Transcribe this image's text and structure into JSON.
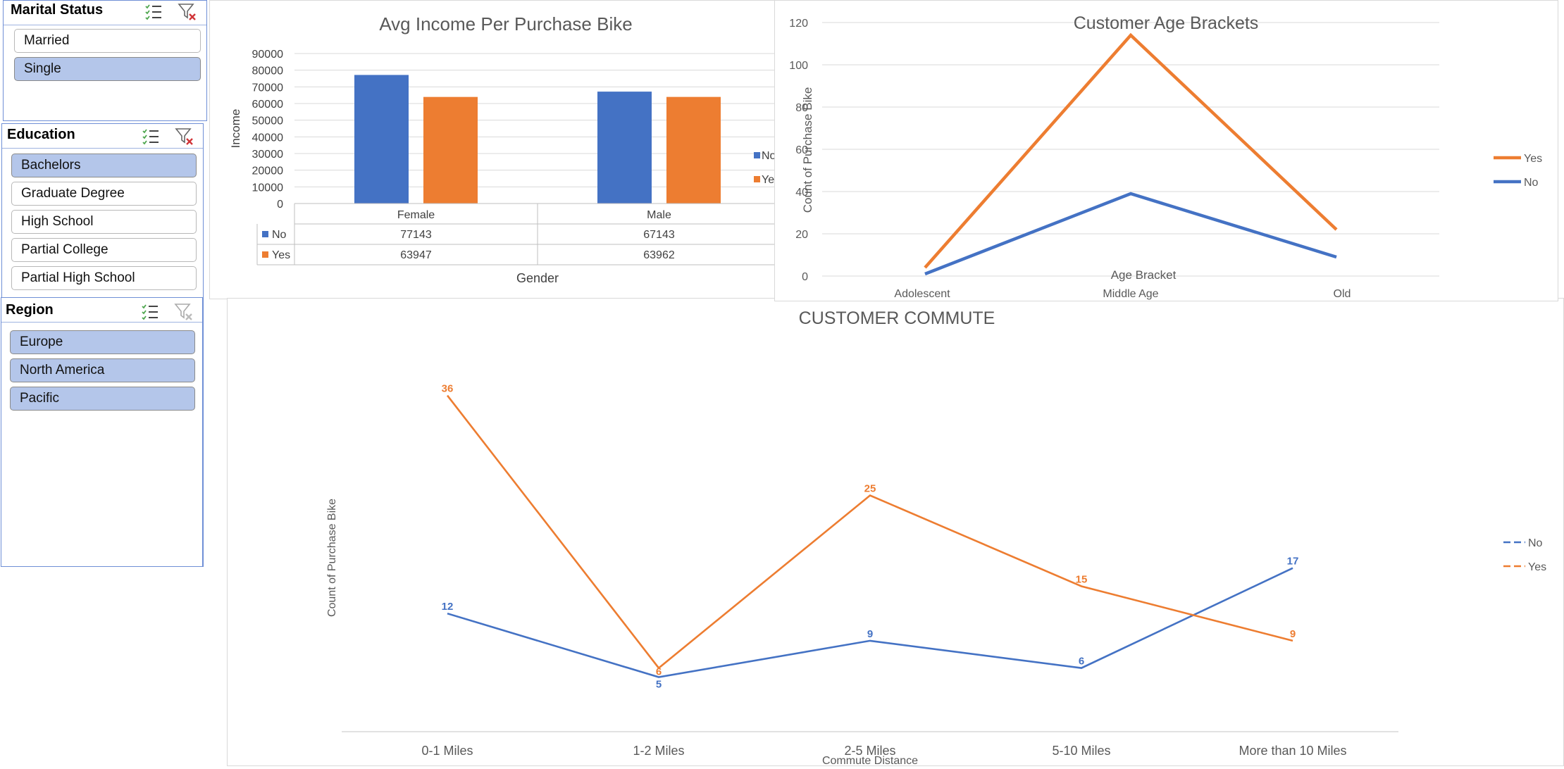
{
  "slicers": {
    "marital": {
      "title": "Marital Status",
      "items": [
        {
          "label": "Married",
          "selected": false
        },
        {
          "label": "Single",
          "selected": true
        }
      ]
    },
    "education": {
      "title": "Education",
      "items": [
        {
          "label": "Bachelors",
          "selected": true
        },
        {
          "label": "Graduate Degree",
          "selected": false
        },
        {
          "label": "High School",
          "selected": false
        },
        {
          "label": "Partial College",
          "selected": false
        },
        {
          "label": "Partial High School",
          "selected": false
        }
      ]
    },
    "region": {
      "title": "Region",
      "items": [
        {
          "label": "Europe",
          "selected": true
        },
        {
          "label": "North America",
          "selected": true
        },
        {
          "label": "Pacific",
          "selected": true
        }
      ]
    }
  },
  "colors": {
    "no": "#4472c4",
    "yes": "#ed7d31",
    "axis": "#595959",
    "grid": "#d9d9d9"
  },
  "chart_data": [
    {
      "type": "bar",
      "title": "Avg Income Per Purchase Bike",
      "xlabel": "Gender",
      "ylabel": "Income",
      "categories": [
        "Female",
        "Male"
      ],
      "yticks": [
        "0",
        "10000",
        "20000",
        "30000",
        "40000",
        "50000",
        "60000",
        "70000",
        "80000",
        "90000"
      ],
      "ylim": [
        0,
        90000
      ],
      "series": [
        {
          "name": "No",
          "values": [
            77143,
            67143
          ]
        },
        {
          "name": "Yes",
          "values": [
            63947,
            63962
          ]
        }
      ],
      "data_table": true,
      "legend": "right",
      "legend_labels": [
        "No",
        "Ye"
      ],
      "grid": true
    },
    {
      "type": "line",
      "title": "Customer Age Brackets",
      "xlabel": "Age Bracket",
      "ylabel": "Count of Purchase Bike",
      "categories": [
        "Adolescent",
        "Middle Age",
        "Old"
      ],
      "yticks": [
        "0",
        "20",
        "40",
        "60",
        "80",
        "100",
        "120"
      ],
      "ylim": [
        0,
        120
      ],
      "series": [
        {
          "name": "Yes",
          "values": [
            4,
            114,
            22
          ]
        },
        {
          "name": "No",
          "values": [
            1,
            39,
            9
          ]
        }
      ],
      "legend": "right",
      "grid": true
    },
    {
      "type": "line",
      "title": "CUSTOMER COMMUTE",
      "xlabel": "Commute Distance",
      "ylabel": "Count of Purchase Bike",
      "categories": [
        "0-1 Miles",
        "1-2 Miles",
        "2-5 Miles",
        "5-10 Miles",
        "More than 10 Miles"
      ],
      "ylim": [
        0,
        36
      ],
      "series": [
        {
          "name": "No",
          "values": [
            12,
            5,
            9,
            6,
            17
          ]
        },
        {
          "name": "Yes",
          "values": [
            36,
            6,
            25,
            15,
            9
          ]
        }
      ],
      "data_labels": true,
      "legend": "right",
      "grid": false
    }
  ]
}
